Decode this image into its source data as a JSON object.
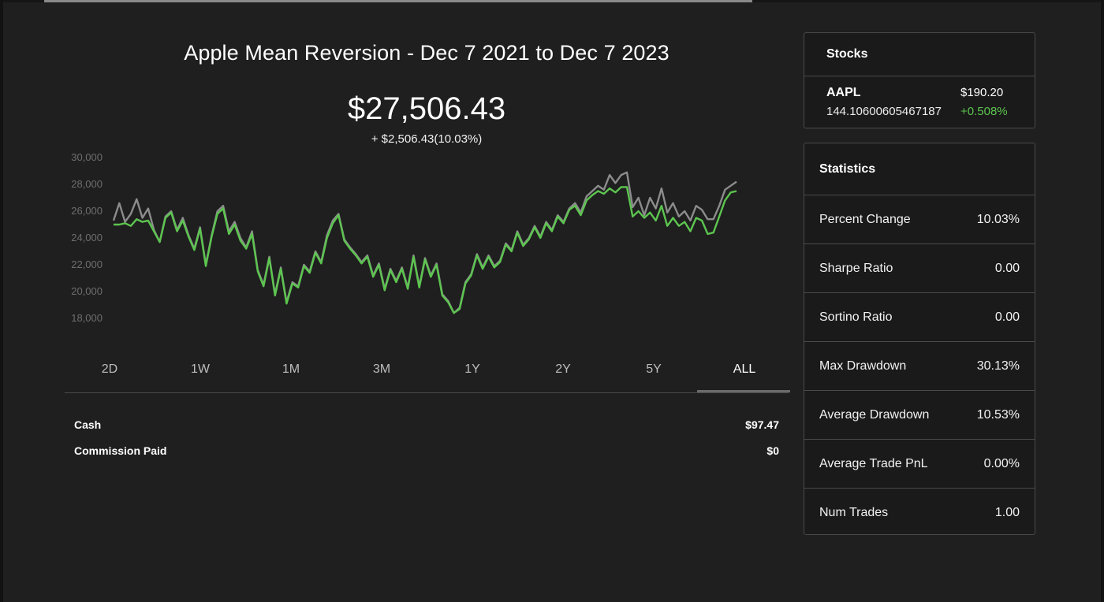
{
  "title": "Apple Mean Reversion - Dec 7 2021 to Dec 7 2023",
  "balance": "$27,506.43",
  "balance_change": "+ $2,506.43(10.03%)",
  "range_tabs": [
    {
      "label": "2D",
      "active": false
    },
    {
      "label": "1W",
      "active": false
    },
    {
      "label": "1M",
      "active": false
    },
    {
      "label": "3M",
      "active": false
    },
    {
      "label": "1Y",
      "active": false
    },
    {
      "label": "2Y",
      "active": false
    },
    {
      "label": "5Y",
      "active": false
    },
    {
      "label": "ALL",
      "active": true
    }
  ],
  "summary": {
    "cash_label": "Cash",
    "cash_value": "$97.47",
    "commission_label": "Commission Paid",
    "commission_value": "$0"
  },
  "stocks": {
    "header": "Stocks",
    "items": [
      {
        "symbol": "AAPL",
        "price": "$190.20",
        "quantity": "144.10600605467187",
        "change": "+0.508%"
      }
    ]
  },
  "statistics": {
    "header": "Statistics",
    "rows": [
      {
        "label": "Percent Change",
        "value": "10.03%"
      },
      {
        "label": "Sharpe Ratio",
        "value": "0.00"
      },
      {
        "label": "Sortino Ratio",
        "value": "0.00"
      },
      {
        "label": "Max Drawdown",
        "value": "30.13%"
      },
      {
        "label": "Average Drawdown",
        "value": "10.53%"
      },
      {
        "label": "Average Trade PnL",
        "value": "0.00%"
      },
      {
        "label": "Num Trades",
        "value": "1.00"
      }
    ]
  },
  "colors": {
    "background": "#1f1f1f",
    "portfolio_line": "#5cc54f",
    "benchmark_line": "#8c8c8c",
    "positive": "#5cc54f"
  },
  "chart_data": {
    "type": "line",
    "y_ticks": [
      "30,000",
      "28,000",
      "26,000",
      "24,000",
      "22,000",
      "20,000",
      "18,000"
    ],
    "ylim": [
      18000,
      30000
    ],
    "grid": false,
    "series": [
      {
        "color": "#8c8c8c",
        "values": [
          25300,
          26600,
          25200,
          25800,
          26900,
          25500,
          26200,
          24600,
          23700,
          25600,
          26000,
          24600,
          25500,
          24200,
          23200,
          24800,
          22000,
          24200,
          26000,
          26400,
          24500,
          25200,
          24000,
          23300,
          24500,
          21600,
          20500,
          22600,
          19800,
          21800,
          19200,
          20700,
          20400,
          22000,
          21500,
          23000,
          22200,
          24200,
          25300,
          25800,
          23900,
          23300,
          22800,
          22200,
          22700,
          21200,
          22100,
          20200,
          21700,
          20800,
          21800,
          20300,
          22700,
          20400,
          22500,
          21200,
          22100,
          19800,
          19300,
          18400,
          18800,
          20700,
          21300,
          22800,
          21800,
          22700,
          21900,
          22300,
          23600,
          23100,
          24500,
          23500,
          24000,
          24900,
          24100,
          25200,
          24600,
          25700,
          25200,
          26200,
          26600,
          25900,
          27100,
          27500,
          27900,
          27600,
          28700,
          28100,
          28700,
          28900,
          26300,
          27000,
          25700,
          27000,
          26200,
          27700,
          25900,
          26600,
          25600,
          26000,
          25300,
          26400,
          26100,
          25400,
          25400,
          26400,
          27600,
          27900,
          28200
        ],
        "name": ""
      },
      {
        "color": "#5cc54f",
        "values": [
          25000,
          25000,
          25100,
          24900,
          25400,
          25200,
          25300,
          24500,
          23700,
          25500,
          25900,
          24500,
          25300,
          24100,
          23100,
          24700,
          21900,
          24100,
          25800,
          26200,
          24300,
          25000,
          23800,
          23200,
          24300,
          21500,
          20400,
          22500,
          19700,
          21700,
          19100,
          20600,
          20300,
          21900,
          21400,
          22900,
          22100,
          24000,
          25100,
          25700,
          23800,
          23200,
          22700,
          22100,
          22600,
          21100,
          22000,
          20100,
          21600,
          20700,
          21700,
          20200,
          22600,
          20300,
          22400,
          21100,
          22000,
          19700,
          19200,
          18400,
          18700,
          20600,
          21200,
          22700,
          21700,
          22600,
          21800,
          22200,
          23500,
          23000,
          24400,
          23400,
          23900,
          24800,
          24000,
          25100,
          24500,
          25600,
          25100,
          26100,
          26400,
          25700,
          26800,
          27200,
          27500,
          27300,
          27700,
          27400,
          27800,
          27800,
          25600,
          26000,
          25500,
          25900,
          25300,
          26400,
          24900,
          25500,
          24900,
          25200,
          24500,
          25500,
          25300,
          24300,
          24400,
          25600,
          26800,
          27400,
          27500
        ]
      }
    ]
  }
}
